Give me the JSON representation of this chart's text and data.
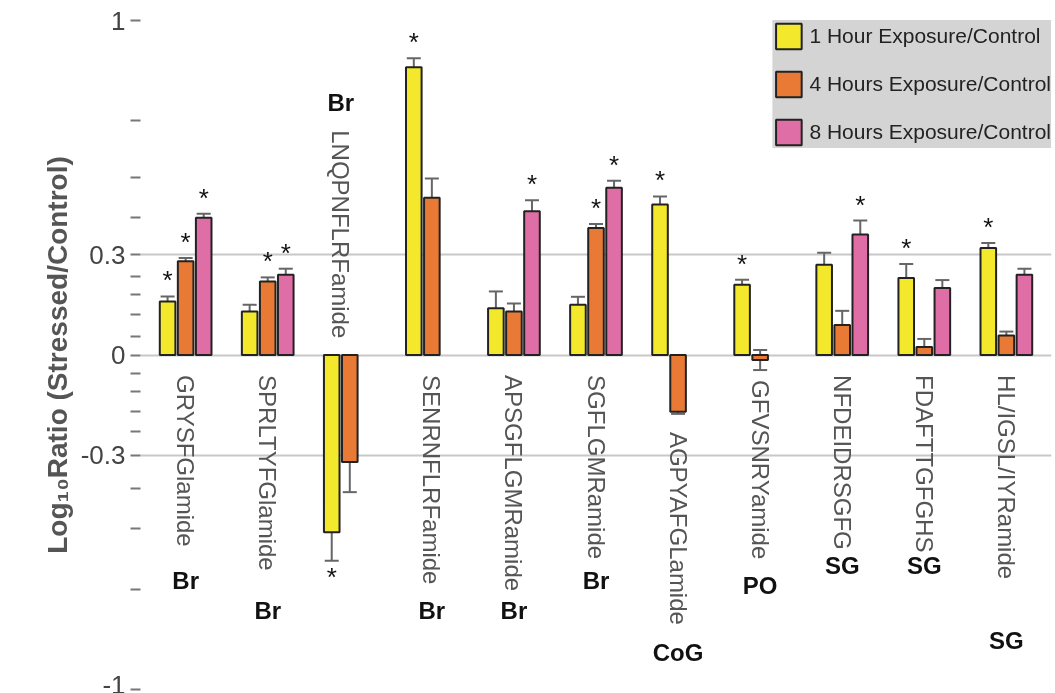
{
  "chart_data": {
    "type": "bar",
    "ylabel": "Log₁₀Ratio (Stressed/Control)",
    "categories": [
      "GRYSFGlamide",
      "SPRLTYFGlamide",
      "LNQPNFLRFamide",
      "SENRNFLRFamide",
      "APSGFLGMRamide",
      "SGFLGMRamide",
      "AGPYAFGLamide",
      "GFVSNRYamide",
      "NFDEIDRSGFG",
      "FDAFTTGFGHS",
      "HL/IGSL/IYRamide"
    ],
    "series": [
      {
        "name": "1 Hour Exposure/Control",
        "color": "#f4e82c",
        "values": [
          0.16,
          0.13,
          -0.53,
          0.86,
          0.14,
          0.15,
          0.45,
          0.21,
          0.27,
          0.23,
          0.32
        ],
        "value_labels": [
          "*",
          null,
          "*",
          "*",
          null,
          null,
          "*",
          "*",
          null,
          "*",
          "*"
        ],
        "errors": [
          0.015,
          0.02,
          0.085,
          0.027,
          0.05,
          0.024,
          0.024,
          0.015,
          0.036,
          0.042,
          0.015
        ]
      },
      {
        "name": "4 Hours Exposure/Control",
        "color": "#e87a35",
        "values": [
          0.28,
          0.22,
          -0.32,
          0.47,
          0.13,
          0.38,
          -0.17,
          -0.015,
          0.09,
          0.024,
          0.058
        ],
        "value_labels": [
          "*",
          "*",
          null,
          null,
          null,
          "*",
          null,
          null,
          null,
          null,
          null
        ],
        "errors": [
          0.01,
          0.012,
          0.09,
          0.058,
          0.024,
          0.012,
          0.006,
          0.03,
          0.042,
          0.024,
          0.012
        ]
      },
      {
        "name": "8 Hours Exposure/Control",
        "color": "#e06ea6",
        "values": [
          0.41,
          0.24,
          null,
          null,
          0.43,
          0.5,
          null,
          null,
          0.36,
          0.2,
          0.24
        ],
        "value_labels": [
          "*",
          "*",
          null,
          null,
          "*",
          "*",
          null,
          null,
          "*",
          null,
          null
        ],
        "errors": [
          0.012,
          0.018,
          null,
          null,
          0.033,
          0.021,
          null,
          null,
          0.042,
          0.024,
          0.018
        ]
      }
    ],
    "ylim": [
      -1,
      1
    ],
    "yticks": [
      -1,
      {
        "value": -0.7,
        "label": null
      },
      {
        "value": -0.52,
        "label": null
      },
      {
        "value": -0.4,
        "label": null
      },
      -0.3,
      {
        "value": -0.23,
        "label": null
      },
      {
        "value": -0.17,
        "label": null
      },
      {
        "value": -0.11,
        "label": null
      },
      {
        "value": -0.055,
        "label": null
      },
      0,
      {
        "value": 0.055,
        "label": null
      },
      {
        "value": 0.12,
        "label": null
      },
      {
        "value": 0.18,
        "label": null
      },
      {
        "value": 0.235,
        "label": null
      },
      0.3,
      {
        "value": 0.41,
        "label": null
      },
      {
        "value": 0.53,
        "label": null
      },
      {
        "value": 0.7,
        "label": null
      },
      1
    ],
    "grid": "y",
    "legend": "top right",
    "annotations": [
      "Br",
      "Br",
      "Br",
      "Br",
      "Br",
      "Br",
      "CoG",
      "PO",
      "SG",
      "SG",
      "SG"
    ]
  }
}
